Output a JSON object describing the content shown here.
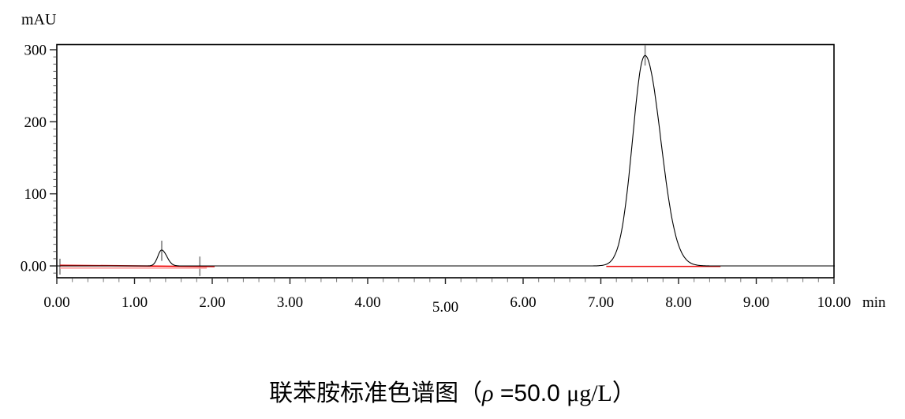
{
  "y_axis_unit": "mAU",
  "caption": {
    "prefix": "联苯胺标准色谱图（",
    "symbol": "ρ",
    "value": " =50.0 ",
    "unit": "μg/L",
    "close": "）"
  },
  "chart_data": {
    "type": "line",
    "title": "联苯胺标准色谱图（ρ =50.0 μg/L）",
    "xlabel": "min",
    "ylabel": "mAU",
    "xlim": [
      0,
      10
    ],
    "ylim": [
      -16,
      308
    ],
    "grid": false,
    "legend": "none",
    "x_major_ticks": [
      0,
      1,
      2,
      3,
      4,
      5,
      6,
      7,
      8,
      9,
      10
    ],
    "x_major_tick_labels": [
      "0.00",
      "1.00",
      "2.00",
      "3.00",
      "4.00",
      "5.00",
      "6.00",
      "7.00",
      "8.00",
      "9.00",
      "10.00"
    ],
    "x_axis_unit_label": "min",
    "x_minor_tick_step_min": 0.2,
    "y_major_ticks": [
      0,
      100,
      200,
      300
    ],
    "y_major_tick_labels": [
      "0.00",
      "100",
      "200",
      "300"
    ],
    "y_minor_tick_step_mAU": 10,
    "series": [
      {
        "name": "uv-signal",
        "color": "#000000",
        "baseline_mAU": 0,
        "x_range_min": [
          0,
          10.01
        ],
        "peaks": [
          {
            "retention_time_min": 1.35,
            "height_mAU": 22,
            "sigma_left_min": 0.05,
            "sigma_right_min": 0.065
          },
          {
            "retention_time_min": 7.57,
            "height_mAU": 292,
            "sigma_left_min": 0.16,
            "sigma_right_min": 0.2
          }
        ]
      },
      {
        "name": "integration-baseline",
        "color": "#ee1111",
        "segments": [
          {
            "t_min": [
              0.04,
              2.03
            ],
            "mAU": [
              1,
              -1
            ]
          },
          {
            "t_min": [
              7.07,
              8.54
            ],
            "mAU": [
              -0.7,
              -0.7
            ]
          }
        ]
      },
      {
        "name": "integration-baseline-shadow",
        "color": "#ff9f9f",
        "segments": [
          {
            "t_min": [
              0.04,
              1.93
            ],
            "mAU": [
              -2.8,
              -2.8
            ]
          }
        ]
      }
    ],
    "event_markers": [
      {
        "name": "injection-marker",
        "t_min": 0.04,
        "mAU_span": [
          -12,
          10
        ]
      },
      {
        "name": "peak1-apex-marker",
        "t_min": 1.35,
        "mAU_span": [
          7,
          35
        ]
      },
      {
        "name": "integration-end-marker",
        "t_min": 1.84,
        "mAU_span": [
          -14,
          13
        ]
      },
      {
        "name": "peak2-apex-marker",
        "t_min": 7.57,
        "mAU_span": [
          278,
          306
        ]
      }
    ]
  }
}
